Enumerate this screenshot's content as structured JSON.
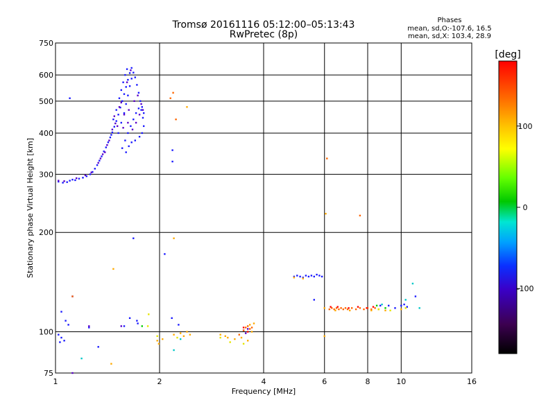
{
  "chart_data": {
    "type": "scatter",
    "title": "Tromsø 20161116 05:12:00–05:13:43",
    "subtitle": "RwPretec (8p)",
    "xlabel": "Frequency [MHz]",
    "ylabel": "Stationary phase Virtual Height [km]",
    "x_scale": "log",
    "y_scale": "log",
    "xlim": [
      1,
      16
    ],
    "ylim": [
      75,
      750
    ],
    "x_ticks": [
      1,
      2,
      4,
      6,
      8,
      10,
      16
    ],
    "x_tick_labels": [
      "1",
      "2",
      "4",
      "6",
      "8",
      "10",
      "16"
    ],
    "y_ticks": [
      75,
      100,
      200,
      300,
      400,
      500,
      600,
      750
    ],
    "y_tick_labels": [
      "75",
      "100",
      "200",
      "300",
      "400",
      "500",
      "600",
      "750"
    ],
    "grid": true,
    "phase_stats": {
      "title": "Phases",
      "line_o": "mean, sd,O:-107.6, 16.5",
      "line_x": "mean, sd,X: 103.4, 28.9"
    },
    "colorbar": {
      "label": "[deg]",
      "range": [
        -180,
        180
      ],
      "ticks": [
        100,
        0,
        -100
      ],
      "tick_labels": [
        "100",
        "0",
        "-100"
      ]
    },
    "series": [
      {
        "color": "#1a1aff",
        "phase": -110,
        "points": [
          [
            1.02,
            285
          ],
          [
            1.05,
            283
          ],
          [
            1.08,
            284
          ],
          [
            1.1,
            287
          ],
          [
            1.12,
            289
          ],
          [
            1.14,
            288
          ],
          [
            1.17,
            291
          ],
          [
            1.2,
            293
          ],
          [
            1.23,
            296
          ],
          [
            1.26,
            300
          ],
          [
            1.28,
            305
          ],
          [
            1.3,
            312
          ],
          [
            1.32,
            320
          ],
          [
            1.34,
            330
          ],
          [
            1.36,
            340
          ],
          [
            1.38,
            352
          ],
          [
            1.4,
            362
          ],
          [
            1.42,
            375
          ],
          [
            1.44,
            388
          ],
          [
            1.46,
            402
          ],
          [
            1.48,
            418
          ],
          [
            1.5,
            435
          ],
          [
            1.52,
            455
          ],
          [
            1.54,
            478
          ],
          [
            1.56,
            500
          ],
          [
            1.58,
            525
          ],
          [
            1.6,
            552
          ],
          [
            1.62,
            580
          ],
          [
            1.64,
            608
          ],
          [
            1.66,
            630
          ],
          [
            1.45,
            395
          ],
          [
            1.47,
            440
          ],
          [
            1.5,
            470
          ],
          [
            1.53,
            510
          ],
          [
            1.55,
            540
          ],
          [
            1.57,
            570
          ],
          [
            1.59,
            600
          ],
          [
            1.61,
            625
          ],
          [
            1.52,
            400
          ],
          [
            1.55,
            430
          ],
          [
            1.58,
            460
          ],
          [
            1.6,
            490
          ],
          [
            1.62,
            520
          ],
          [
            1.64,
            555
          ],
          [
            1.66,
            585
          ],
          [
            1.68,
            610
          ],
          [
            1.7,
            590
          ],
          [
            1.72,
            560
          ],
          [
            1.74,
            530
          ],
          [
            1.76,
            500
          ],
          [
            1.78,
            480
          ],
          [
            1.8,
            460
          ],
          [
            1.56,
            360
          ],
          [
            1.59,
            380
          ],
          [
            1.62,
            400
          ],
          [
            1.65,
            420
          ],
          [
            1.68,
            440
          ],
          [
            1.71,
            460
          ],
          [
            1.74,
            475
          ],
          [
            1.77,
            470
          ],
          [
            1.79,
            445
          ],
          [
            1.8,
            420
          ],
          [
            1.78,
            400
          ],
          [
            1.75,
            390
          ],
          [
            1.7,
            380
          ],
          [
            1.66,
            375
          ],
          [
            1.63,
            365
          ],
          [
            1.6,
            350
          ],
          [
            1.1,
            510
          ],
          [
            1.12,
            128
          ],
          [
            1.04,
            115
          ],
          [
            1.07,
            108
          ],
          [
            1.09,
            105
          ],
          [
            1.02,
            98
          ],
          [
            1.04,
            96
          ],
          [
            1.06,
            94
          ],
          [
            1.03,
            93
          ],
          [
            1.25,
            103
          ],
          [
            1.33,
            90
          ],
          [
            1.58,
            104
          ],
          [
            1.64,
            110
          ],
          [
            1.72,
            108
          ],
          [
            1.73,
            106
          ],
          [
            1.68,
            192
          ],
          [
            2.07,
            172
          ],
          [
            2.17,
            110
          ],
          [
            2.18,
            355
          ],
          [
            2.18,
            328
          ],
          [
            2.27,
            105
          ],
          [
            4.9,
            147
          ],
          [
            5.0,
            148
          ],
          [
            5.1,
            147
          ],
          [
            5.2,
            146
          ],
          [
            5.3,
            148
          ],
          [
            5.4,
            147
          ],
          [
            5.5,
            148
          ],
          [
            5.6,
            147
          ],
          [
            5.7,
            149
          ],
          [
            5.8,
            148
          ],
          [
            5.9,
            147
          ],
          [
            5.6,
            125
          ],
          [
            8.7,
            120
          ],
          [
            9.2,
            120
          ],
          [
            9.6,
            118
          ],
          [
            10.0,
            120
          ],
          [
            10.2,
            121
          ],
          [
            10.4,
            119
          ],
          [
            11.0,
            128
          ]
        ]
      },
      {
        "color": "#5a00c8",
        "phase": -140,
        "points": [
          [
            1.02,
            287
          ],
          [
            1.06,
            286
          ],
          [
            1.15,
            292
          ],
          [
            1.22,
            298
          ],
          [
            1.27,
            304
          ],
          [
            1.33,
            325
          ],
          [
            1.37,
            345
          ],
          [
            1.43,
            380
          ],
          [
            1.49,
            428
          ],
          [
            1.55,
            495
          ],
          [
            1.61,
            570
          ],
          [
            1.65,
            620
          ],
          [
            1.48,
            450
          ],
          [
            1.53,
            480
          ],
          [
            1.58,
            455
          ],
          [
            1.62,
            430
          ],
          [
            1.67,
            410
          ],
          [
            1.71,
            430
          ],
          [
            1.75,
            455
          ],
          [
            1.79,
            470
          ],
          [
            1.46,
            410
          ],
          [
            1.51,
            420
          ],
          [
            1.57,
            415
          ],
          [
            1.63,
            470
          ],
          [
            1.69,
            500
          ],
          [
            1.73,
            520
          ],
          [
            1.77,
            490
          ],
          [
            1.35,
            335
          ],
          [
            1.39,
            350
          ],
          [
            1.41,
            368
          ],
          [
            1.12,
            75
          ],
          [
            1.25,
            104
          ],
          [
            1.55,
            104
          ],
          [
            3.5,
            101
          ],
          [
            3.6,
            102
          ],
          [
            3.55,
            99
          ]
        ]
      },
      {
        "color": "#ff6600",
        "phase": 150,
        "points": [
          [
            2.15,
            510
          ],
          [
            2.19,
            530
          ],
          [
            2.23,
            440
          ],
          [
            1.12,
            128
          ],
          [
            6.1,
            335
          ],
          [
            7.6,
            225
          ],
          [
            3.5,
            101
          ],
          [
            3.55,
            103
          ],
          [
            3.6,
            104
          ],
          [
            3.65,
            102
          ],
          [
            3.7,
            103
          ],
          [
            3.4,
            98
          ],
          [
            6.2,
            117
          ],
          [
            6.3,
            118
          ],
          [
            6.4,
            117
          ],
          [
            6.5,
            118
          ],
          [
            6.6,
            117
          ],
          [
            6.7,
            118
          ],
          [
            6.8,
            117
          ],
          [
            6.9,
            118
          ],
          [
            7.0,
            117
          ],
          [
            7.2,
            118
          ],
          [
            7.4,
            117
          ],
          [
            7.6,
            118
          ],
          [
            7.8,
            117
          ],
          [
            8.0,
            118
          ],
          [
            8.2,
            117
          ],
          [
            8.4,
            118
          ],
          [
            8.6,
            117
          ]
        ]
      },
      {
        "color": "#ffaa00",
        "phase": 110,
        "points": [
          [
            2.4,
            480
          ],
          [
            6.05,
            228
          ],
          [
            1.47,
            155
          ],
          [
            2.2,
            98
          ],
          [
            2.3,
            99
          ],
          [
            2.35,
            97
          ],
          [
            2.4,
            100
          ],
          [
            2.45,
            98
          ],
          [
            2.2,
            192
          ],
          [
            1.97,
            94
          ],
          [
            1.99,
            92
          ],
          [
            2.04,
            95
          ],
          [
            3.0,
            98
          ],
          [
            3.1,
            97
          ],
          [
            3.15,
            96
          ],
          [
            3.3,
            95
          ],
          [
            3.45,
            96
          ],
          [
            3.6,
            94
          ],
          [
            3.7,
            100
          ],
          [
            3.65,
            105
          ],
          [
            3.75,
            106
          ],
          [
            4.9,
            146
          ],
          [
            5.2,
            145
          ],
          [
            6.0,
            97
          ],
          [
            6.0,
            118
          ],
          [
            6.45,
            116
          ],
          [
            7.1,
            116
          ],
          [
            8.2,
            116
          ],
          [
            9.0,
            116
          ],
          [
            10.0,
            117
          ],
          [
            1.45,
            80
          ]
        ]
      },
      {
        "color": "#e6e600",
        "phase": 90,
        "points": [
          [
            1.86,
            113
          ],
          [
            1.85,
            104
          ],
          [
            1.97,
            97
          ],
          [
            2.25,
            96
          ],
          [
            3.0,
            96
          ],
          [
            3.2,
            93
          ],
          [
            3.5,
            92
          ],
          [
            8.6,
            117
          ],
          [
            9.3,
            116
          ],
          [
            10.3,
            118
          ]
        ]
      },
      {
        "color": "#00c8c8",
        "phase": -40,
        "points": [
          [
            1.19,
            83
          ],
          [
            2.2,
            88
          ],
          [
            2.3,
            95
          ],
          [
            8.8,
            121
          ],
          [
            10.3,
            125
          ],
          [
            11.3,
            118
          ],
          [
            10.8,
            140
          ]
        ]
      },
      {
        "color": "#ff0000",
        "phase": 170,
        "points": [
          [
            6.25,
            119
          ],
          [
            6.55,
            119
          ],
          [
            7.05,
            118
          ],
          [
            7.5,
            119
          ],
          [
            7.95,
            118
          ],
          [
            8.3,
            119
          ],
          [
            3.5,
            103
          ],
          [
            3.6,
            100
          ]
        ]
      },
      {
        "color": "#00cc00",
        "phase": 20,
        "points": [
          [
            8.5,
            120
          ],
          [
            9.0,
            118
          ],
          [
            1.78,
            104
          ]
        ]
      }
    ]
  }
}
